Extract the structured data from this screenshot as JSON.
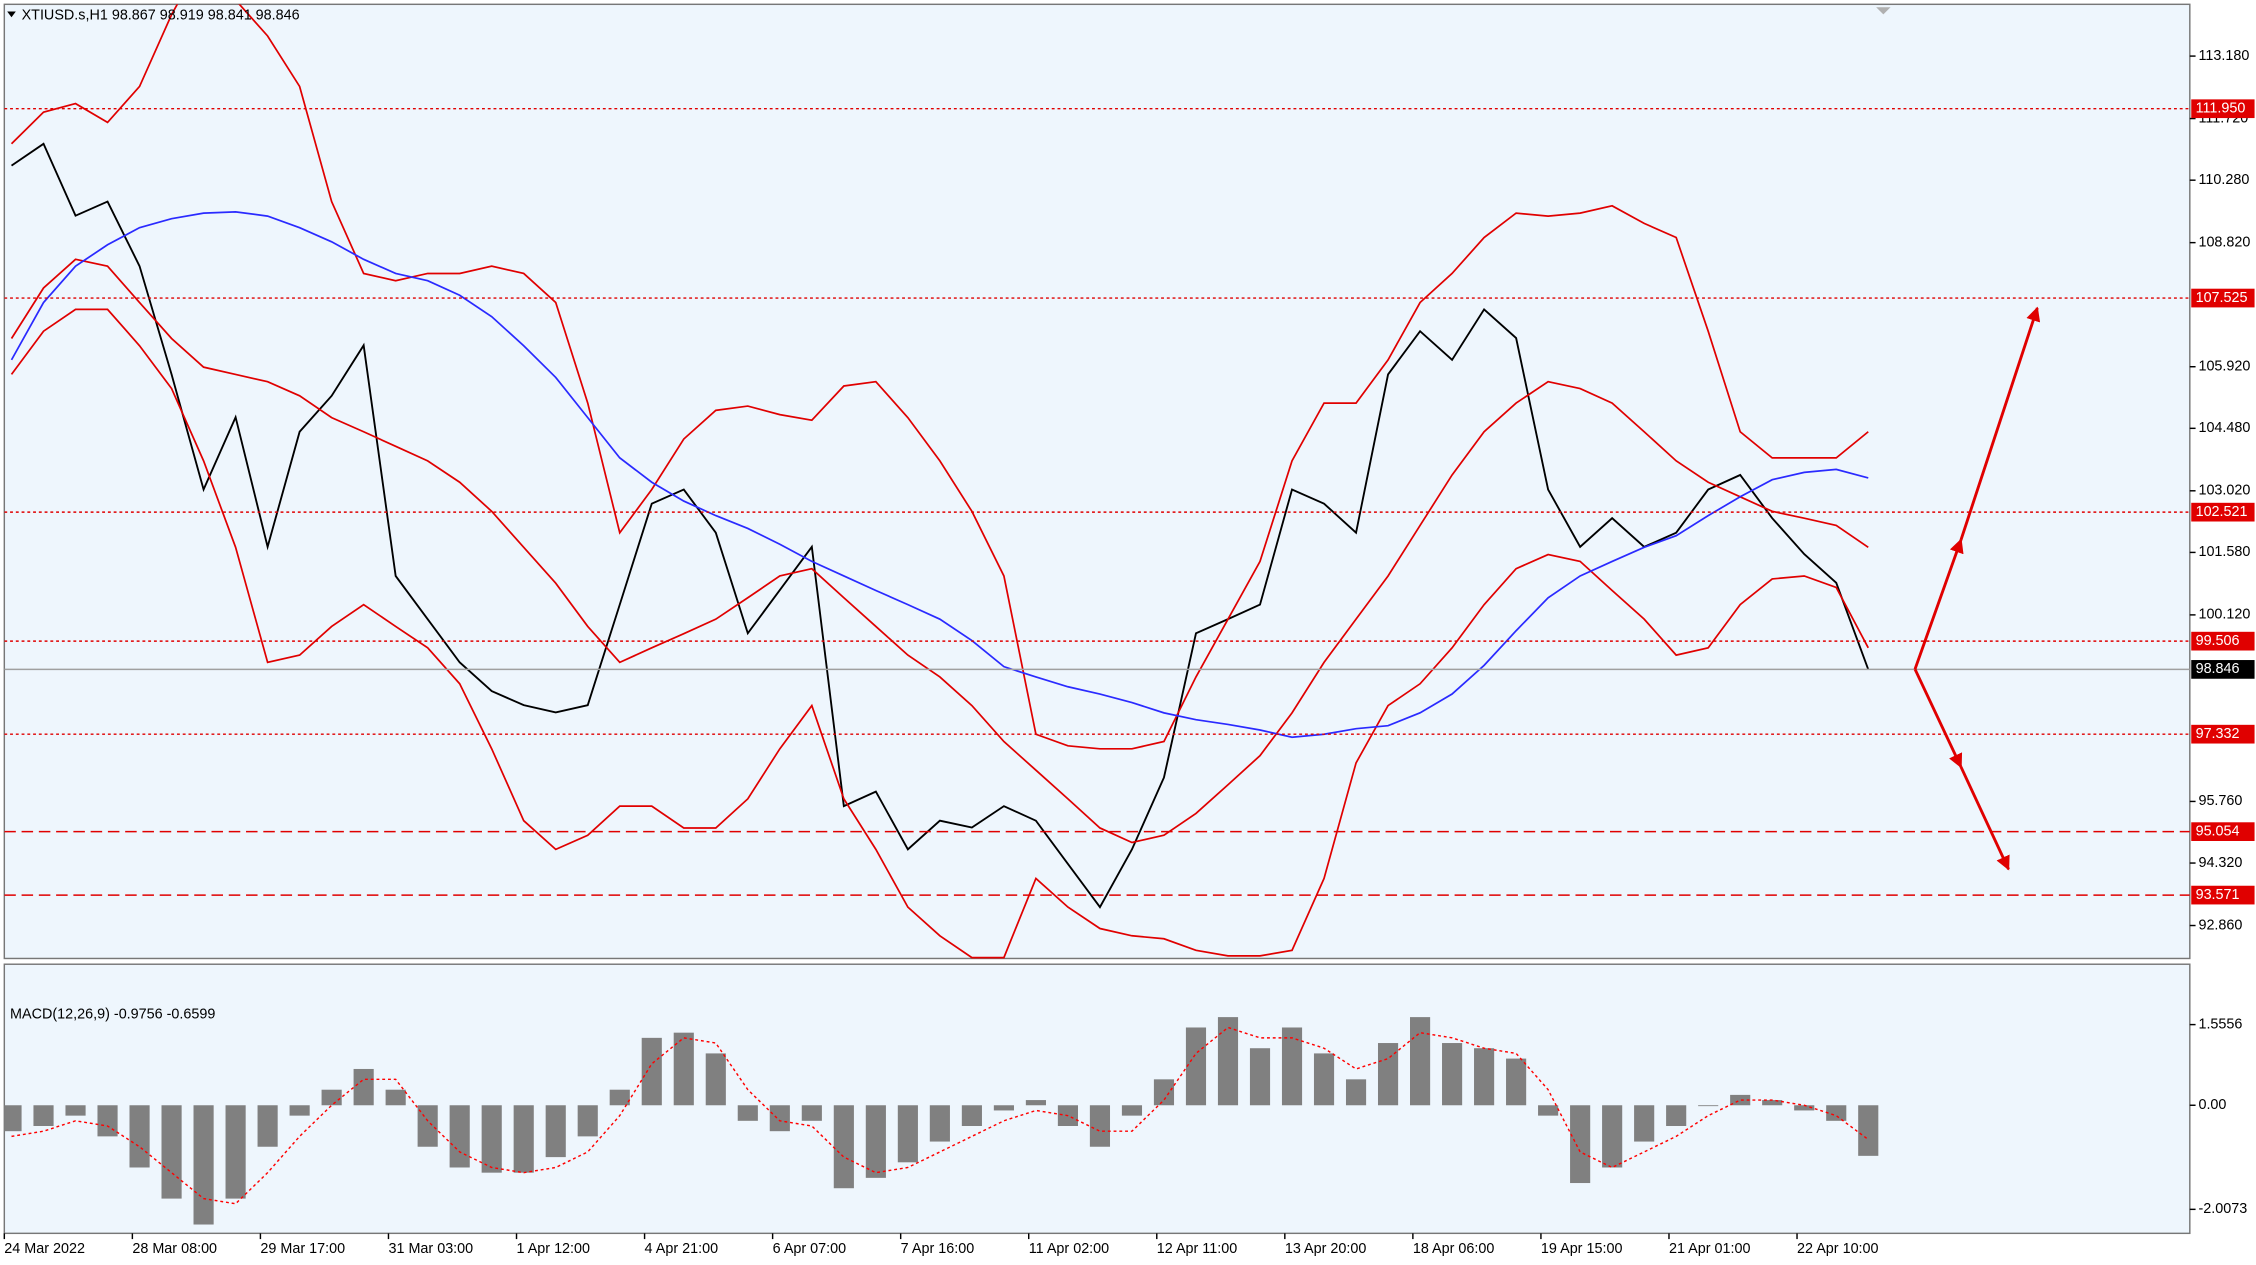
{
  "chart_data": [
    {
      "type": "line",
      "title": "XTIUSD.s,H1  98.867 98.919 98.841 98.846",
      "categories": [
        "24 Mar 2022",
        null,
        null,
        null,
        "28 Mar 08:00",
        null,
        null,
        null,
        "29 Mar 17:00",
        null,
        null,
        null,
        "31 Mar 03:00",
        null,
        null,
        null,
        "1 Apr 12:00",
        null,
        null,
        null,
        "4 Apr 21:00",
        null,
        null,
        null,
        "6 Apr 07:00",
        null,
        null,
        null,
        "7 Apr 16:00",
        null,
        null,
        null,
        "11 Apr 02:00",
        null,
        null,
        null,
        "12 Apr 11:00",
        null,
        null,
        null,
        "13 Apr 20:00",
        null,
        null,
        null,
        "18 Apr 06:00",
        null,
        null,
        null,
        "19 Apr 15:00",
        null,
        null,
        null,
        "21 Apr 01:00",
        null,
        null,
        null,
        "22 Apr 10:00",
        null,
        null
      ],
      "series": [
        {
          "color": "#000000",
          "values": [
            110.62,
            111.13,
            109.45,
            109.78,
            108.27,
            105.74,
            103.05,
            104.74,
            101.71,
            104.4,
            105.24,
            106.42,
            101.03,
            100.02,
            99.01,
            98.34,
            98.01,
            97.84,
            98.01,
            100.36,
            102.72,
            103.05,
            102.04,
            99.69,
            100.7,
            101.71,
            95.65,
            95.99,
            94.64,
            95.31,
            95.15,
            95.65,
            95.31,
            94.3,
            93.29,
            94.64,
            96.32,
            99.69,
            100.02,
            100.36,
            103.05,
            102.72,
            102.04,
            105.74,
            106.75,
            106.08,
            107.26,
            106.59,
            103.05,
            101.71,
            102.38,
            101.71,
            102.04,
            103.05,
            103.39,
            102.38,
            101.54,
            100.87,
            98.846
          ]
        },
        {
          "color": "#e00000",
          "values": [
            111.13,
            111.87,
            112.07,
            111.63,
            112.47,
            114.15,
            115.5,
            114.49,
            113.65,
            112.47,
            109.78,
            108.1,
            107.93,
            108.1,
            108.1,
            108.27,
            108.1,
            107.42,
            105.07,
            102.04,
            103.05,
            104.23,
            104.9,
            105.0,
            104.8,
            104.67,
            105.47,
            105.57,
            104.73,
            103.72,
            102.54,
            101.03,
            97.33,
            97.06,
            96.99,
            96.99,
            97.16,
            98.67,
            100.02,
            101.37,
            103.72,
            105.07,
            105.07,
            106.08,
            107.42,
            108.1,
            108.94,
            109.51,
            109.44,
            109.51,
            109.68,
            109.27,
            108.94,
            106.75,
            104.4,
            103.79,
            103.79,
            103.79,
            104.4
          ]
        },
        {
          "color": "#e00000",
          "values": [
            106.58,
            107.76,
            108.43,
            108.27,
            107.42,
            106.58,
            105.91,
            105.74,
            105.57,
            105.24,
            104.73,
            104.4,
            104.06,
            103.72,
            103.22,
            102.54,
            101.7,
            100.86,
            99.85,
            99.01,
            99.35,
            99.68,
            100.02,
            100.52,
            101.03,
            101.2,
            100.52,
            99.85,
            99.18,
            98.67,
            98.0,
            97.16,
            96.49,
            95.82,
            95.14,
            94.8,
            94.97,
            95.48,
            96.15,
            96.83,
            97.83,
            99.01,
            100.02,
            101.03,
            102.21,
            103.39,
            104.4,
            105.07,
            105.57,
            105.41,
            105.07,
            104.4,
            103.72,
            103.22,
            102.88,
            102.54,
            102.38,
            102.21,
            101.7
          ]
        },
        {
          "color": "#e00000",
          "values": [
            105.74,
            106.75,
            107.26,
            107.26,
            106.41,
            105.41,
            103.72,
            101.7,
            99.01,
            99.18,
            99.85,
            100.36,
            99.85,
            99.35,
            98.51,
            96.99,
            95.31,
            94.64,
            94.97,
            95.65,
            95.65,
            95.14,
            95.14,
            95.82,
            96.99,
            98.0,
            95.82,
            94.64,
            93.29,
            92.62,
            92.11,
            92.11,
            93.96,
            93.29,
            92.79,
            92.62,
            92.55,
            92.28,
            92.15,
            92.15,
            92.28,
            93.96,
            96.66,
            98.0,
            98.51,
            99.35,
            100.36,
            101.2,
            101.53,
            101.37,
            100.69,
            100.02,
            99.18,
            99.35,
            100.36,
            100.96,
            101.03,
            100.76,
            99.35
          ]
        },
        {
          "color": "#2a2aff",
          "values": [
            106.08,
            107.42,
            108.27,
            108.77,
            109.17,
            109.38,
            109.51,
            109.54,
            109.44,
            109.17,
            108.84,
            108.43,
            108.1,
            107.93,
            107.59,
            107.09,
            106.41,
            105.67,
            104.73,
            103.79,
            103.22,
            102.78,
            102.44,
            102.14,
            101.77,
            101.37,
            101.03,
            100.69,
            100.36,
            100.02,
            99.52,
            98.91,
            98.67,
            98.44,
            98.27,
            98.07,
            97.83,
            97.67,
            97.56,
            97.43,
            97.26,
            97.33,
            97.46,
            97.53,
            97.83,
            98.27,
            98.94,
            99.75,
            100.52,
            101.03,
            101.37,
            101.7,
            101.97,
            102.44,
            102.88,
            103.28,
            103.45,
            103.52,
            103.32
          ]
        }
      ],
      "ylim": [
        92.09,
        114.39
      ],
      "yticks": [
        {
          "value": 113.18,
          "label": "113.180"
        },
        {
          "value": 111.72,
          "label": "111.720"
        },
        {
          "value": 110.28,
          "label": "110.280"
        },
        {
          "value": 108.82,
          "label": "108.820"
        },
        {
          "value": 105.92,
          "label": "105.920"
        },
        {
          "value": 104.48,
          "label": "104.480"
        },
        {
          "value": 103.02,
          "label": "103.020"
        },
        {
          "value": 101.58,
          "label": "101.580"
        },
        {
          "value": 100.12,
          "label": "100.120"
        },
        {
          "value": 95.76,
          "label": "95.760"
        },
        {
          "value": 94.32,
          "label": "94.320"
        },
        {
          "value": 92.86,
          "label": "92.860"
        }
      ],
      "level_color": "#e00000",
      "levels": [
        {
          "value": 111.95,
          "label": "111.950",
          "style": "dotted"
        },
        {
          "value": 107.525,
          "label": "107.525",
          "style": "dotted"
        },
        {
          "value": 102.521,
          "label": "102.521",
          "style": "dotted"
        },
        {
          "value": 99.506,
          "label": "99.506",
          "style": "dotted"
        },
        {
          "value": 97.332,
          "label": "97.332",
          "style": "dotted"
        },
        {
          "value": 95.054,
          "label": "95.054",
          "style": "dashed"
        },
        {
          "value": 93.571,
          "label": "93.571",
          "style": "dashed"
        }
      ],
      "last_price": {
        "value": 98.846,
        "label": "98.846"
      }
    },
    {
      "type": "bar",
      "title": "MACD(12,26,9) -0.9756 -0.6599",
      "series": [
        {
          "color": "#808080",
          "style": "bar",
          "values": [
            -0.5,
            -0.4,
            -0.2,
            -0.6,
            -1.2,
            -1.8,
            -2.3,
            -1.8,
            -0.8,
            -0.2,
            0.3,
            0.7,
            0.3,
            -0.8,
            -1.2,
            -1.3,
            -1.3,
            -1.0,
            -0.6,
            0.3,
            1.3,
            1.4,
            1.0,
            -0.3,
            -0.5,
            -0.3,
            -1.6,
            -1.4,
            -1.1,
            -0.7,
            -0.4,
            -0.1,
            0.1,
            -0.4,
            -0.8,
            -0.2,
            0.5,
            1.5,
            1.7,
            1.1,
            1.5,
            1.0,
            0.5,
            1.2,
            1.7,
            1.2,
            1.1,
            0.9,
            -0.2,
            -1.5,
            -1.2,
            -0.7,
            -0.4,
            0.0,
            0.2,
            0.1,
            -0.1,
            -0.3,
            -0.9756
          ]
        },
        {
          "color": "#ff0000",
          "style": "dotted",
          "values": [
            -0.6,
            -0.5,
            -0.3,
            -0.4,
            -0.8,
            -1.3,
            -1.8,
            -1.9,
            -1.3,
            -0.6,
            0.0,
            0.5,
            0.5,
            -0.3,
            -0.9,
            -1.2,
            -1.3,
            -1.2,
            -0.9,
            -0.2,
            0.8,
            1.3,
            1.2,
            0.3,
            -0.3,
            -0.4,
            -1.0,
            -1.3,
            -1.2,
            -0.9,
            -0.6,
            -0.3,
            -0.1,
            -0.2,
            -0.5,
            -0.5,
            0.1,
            1.0,
            1.5,
            1.3,
            1.3,
            1.1,
            0.7,
            0.9,
            1.4,
            1.3,
            1.1,
            1.0,
            0.3,
            -0.9,
            -1.2,
            -0.9,
            -0.6,
            -0.2,
            0.1,
            0.1,
            0.0,
            -0.2,
            -0.6599
          ]
        }
      ],
      "ylim": [
        -2.47,
        2.72
      ],
      "yticks": [
        1.5556,
        {
          "value": 0,
          "label": "0.00"
        },
        -2.0073
      ]
    }
  ]
}
